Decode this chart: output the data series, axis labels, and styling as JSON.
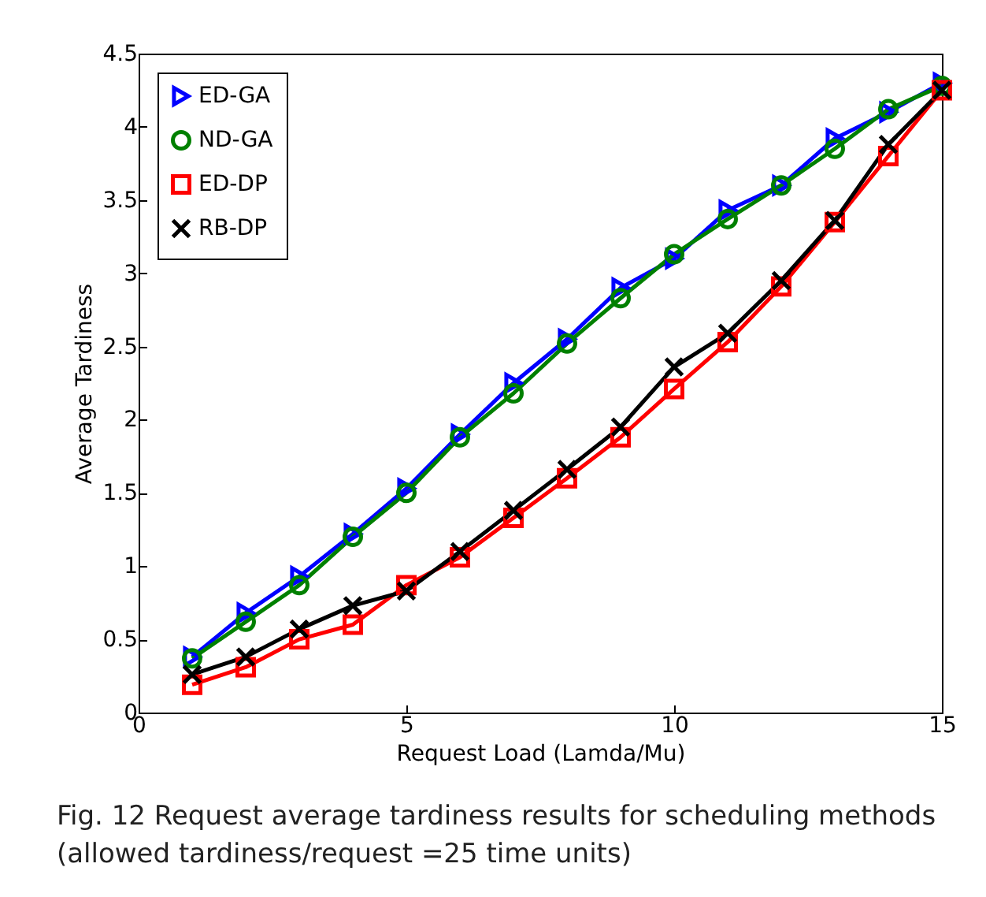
{
  "chart_data": {
    "type": "line",
    "xlabel": "Request Load (Lamda/Mu)",
    "ylabel": "Average Tardiness",
    "x": [
      1,
      2,
      3,
      4,
      5,
      6,
      7,
      8,
      9,
      10,
      11,
      12,
      13,
      14,
      15
    ],
    "series": [
      {
        "name": "ED-GA",
        "color": "#0000ff",
        "marker": "triangle",
        "values": [
          0.38,
          0.68,
          0.93,
          1.22,
          1.53,
          1.9,
          2.25,
          2.55,
          2.9,
          3.1,
          3.43,
          3.6,
          3.92,
          4.1,
          4.3
        ]
      },
      {
        "name": "ND-GA",
        "color": "#008000",
        "marker": "circle",
        "values": [
          0.37,
          0.62,
          0.87,
          1.2,
          1.5,
          1.88,
          2.18,
          2.52,
          2.83,
          3.13,
          3.37,
          3.6,
          3.85,
          4.12,
          4.28
        ]
      },
      {
        "name": "ED-DP",
        "color": "#ff0000",
        "marker": "square",
        "values": [
          0.19,
          0.31,
          0.5,
          0.6,
          0.87,
          1.06,
          1.33,
          1.6,
          1.88,
          2.21,
          2.53,
          2.91,
          3.35,
          3.8,
          4.25
        ]
      },
      {
        "name": "RB-DP",
        "color": "#000000",
        "marker": "cross",
        "values": [
          0.26,
          0.38,
          0.57,
          0.73,
          0.83,
          1.1,
          1.38,
          1.66,
          1.95,
          2.36,
          2.59,
          2.95,
          3.36,
          3.88,
          4.25
        ]
      }
    ],
    "xlim": [
      0,
      15
    ],
    "xticks": [
      0,
      5,
      10,
      15
    ],
    "ylim": [
      0,
      4.5
    ],
    "yticks": [
      0,
      0.5,
      1,
      1.5,
      2,
      2.5,
      3,
      3.5,
      4,
      4.5
    ],
    "grid": false,
    "legend": "top left",
    "line_style": "solid",
    "annotations": [
      "Fig. 12 Request average tardiness results for scheduling methods (allowed tardiness/request =25 time units)"
    ]
  }
}
